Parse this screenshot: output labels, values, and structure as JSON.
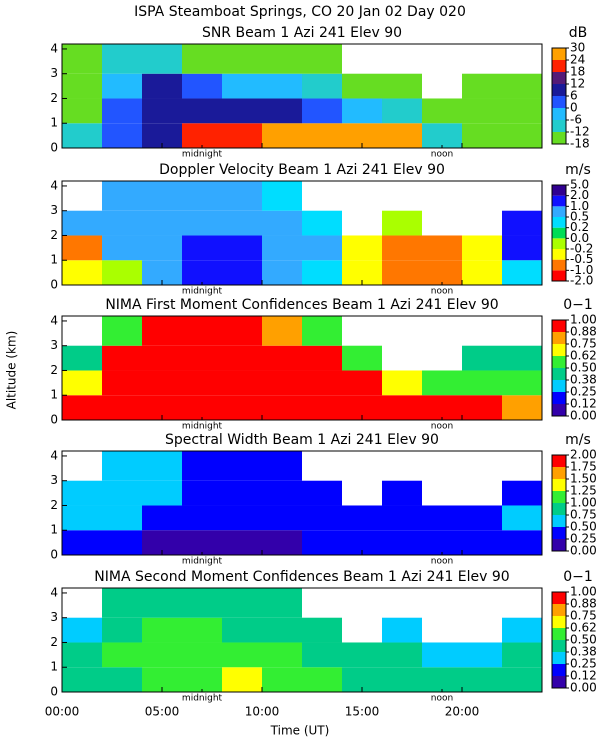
{
  "title": "ISPA Steamboat Springs, CO  20 Jan 02 Day 020",
  "xlabel": "Time (UT)",
  "ylabel": "Altitude (km)",
  "xlim": [
    0,
    24
  ],
  "xticks": [
    {
      "value": 0,
      "label": "00:00"
    },
    {
      "value": 5,
      "label": "05:00"
    },
    {
      "value": 10,
      "label": "10:00"
    },
    {
      "value": 15,
      "label": "15:00"
    },
    {
      "value": 20,
      "label": "20:00"
    }
  ],
  "annotations": [
    {
      "text": "midnight",
      "x": 7
    },
    {
      "text": "noon",
      "x": 19
    }
  ],
  "chart_data": [
    {
      "type": "heatmap",
      "title": "SNR Beam 1 Azi 241 Elev 90",
      "unit": "dB",
      "x_bins": [
        0,
        2,
        4,
        6,
        8,
        10,
        12,
        14,
        16,
        18,
        20,
        22,
        24
      ],
      "y_bins": [
        0,
        1,
        2,
        3,
        4.2
      ],
      "ylim": [
        0,
        4.2
      ],
      "yticks": [
        0,
        1,
        2,
        3,
        4
      ],
      "cticks": [
        -18,
        -12,
        -6,
        0,
        6,
        12,
        18,
        24,
        30
      ],
      "colors": [
        "#66dd22",
        "#22cccc",
        "#22bbff",
        "#2255ff",
        "#1a1a99",
        "#551a77",
        "#ff2200",
        "#ffa000"
      ],
      "z": [
        [
          -12,
          0,
          6,
          18,
          18,
          24,
          24,
          24,
          24,
          -12,
          -15,
          -15
        ],
        [
          -15,
          0,
          6,
          6,
          6,
          6,
          0,
          -6,
          -12,
          -15,
          -18,
          -18
        ],
        [
          -15,
          -6,
          6,
          0,
          -6,
          -6,
          -12,
          -15,
          -18,
          null,
          -18,
          -18
        ],
        [
          -15,
          -12,
          -12,
          -15,
          -15,
          -15,
          -18,
          null,
          null,
          null,
          null,
          null
        ]
      ]
    },
    {
      "type": "heatmap",
      "title": "Doppler Velocity Beam 1 Azi 241 Elev 90",
      "unit": "m/s",
      "x_bins": [
        0,
        2,
        4,
        6,
        8,
        10,
        12,
        14,
        16,
        18,
        20,
        22,
        24
      ],
      "y_bins": [
        0,
        1,
        2,
        3,
        4.2
      ],
      "ylim": [
        0,
        4.2
      ],
      "yticks": [
        0,
        1,
        2,
        3,
        4
      ],
      "cticks": [
        {
          "value": -2,
          "label": "-2.0"
        },
        {
          "value": -1,
          "label": "-1.0"
        },
        -0.5,
        -0.2,
        {
          "value": 0,
          "label": "0.0"
        },
        0.2,
        0.5,
        {
          "value": 1,
          "label": "1.0"
        },
        {
          "value": 2,
          "label": "2.0"
        },
        {
          "value": 5,
          "label": "5.0"
        }
      ],
      "colors": [
        "#ff0000",
        "#ff7700",
        "#ffff00",
        "#aaff00",
        "#00dd55",
        "#00ddff",
        "#33aaff",
        "#1010ff",
        "#300090"
      ],
      "z": [
        [
          -0.5,
          -0.2,
          0.5,
          1.0,
          1.0,
          0.5,
          0.2,
          -0.5,
          -1.0,
          -1.0,
          -0.5,
          0.2
        ],
        [
          -1.0,
          0.5,
          0.5,
          1.0,
          1.0,
          0.5,
          0.5,
          -0.5,
          -1.0,
          -1.0,
          -0.5,
          1.0
        ],
        [
          0.5,
          0.5,
          0.5,
          0.5,
          0.5,
          0.5,
          0.2,
          null,
          -0.2,
          null,
          null,
          1.0
        ],
        [
          null,
          0.5,
          0.5,
          0.5,
          0.5,
          0.2,
          null,
          null,
          null,
          null,
          null,
          null
        ]
      ]
    },
    {
      "type": "heatmap",
      "title": "NIMA First Moment Confidences Beam 1 Azi 241 Elev 90",
      "unit": "0−1",
      "x_bins": [
        0,
        2,
        4,
        6,
        8,
        10,
        12,
        14,
        16,
        18,
        20,
        22,
        24
      ],
      "y_bins": [
        0,
        1,
        2,
        3,
        4.2
      ],
      "ylim": [
        0,
        4.2
      ],
      "yticks": [
        0,
        1,
        2,
        3,
        4
      ],
      "cticks": [
        {
          "value": 0,
          "label": "0.00"
        },
        {
          "value": 0.125,
          "label": "0.12"
        },
        {
          "value": 0.25,
          "label": "0.25"
        },
        {
          "value": 0.375,
          "label": "0.38"
        },
        {
          "value": 0.5,
          "label": "0.50"
        },
        {
          "value": 0.625,
          "label": "0.62"
        },
        {
          "value": 0.75,
          "label": "0.75"
        },
        {
          "value": 0.875,
          "label": "0.88"
        },
        {
          "value": 1,
          "label": "1.00"
        }
      ],
      "colors": [
        "#3300aa",
        "#0000ff",
        "#00ccff",
        "#00cc88",
        "#33ee33",
        "#ffff00",
        "#ffa000",
        "#ff0000"
      ],
      "z": [
        [
          0.9,
          1,
          1,
          1,
          1,
          1,
          1,
          1,
          1,
          1,
          0.95,
          0.8
        ],
        [
          0.7,
          0.95,
          1,
          1,
          1,
          1,
          1,
          0.95,
          0.7,
          0.6,
          0.6,
          0.5
        ],
        [
          0.4,
          1,
          1,
          1,
          1,
          1,
          1,
          0.6,
          null,
          null,
          0.4,
          0.4
        ],
        [
          null,
          0.6,
          0.9,
          0.95,
          0.9,
          0.8,
          0.5,
          null,
          null,
          null,
          null,
          null
        ]
      ]
    },
    {
      "type": "heatmap",
      "title": "Spectral Width Beam 1 Azi 241 Elev 90",
      "unit": "m/s",
      "x_bins": [
        0,
        2,
        4,
        6,
        8,
        10,
        12,
        14,
        16,
        18,
        20,
        22,
        24
      ],
      "y_bins": [
        0,
        1,
        2,
        3,
        4.2
      ],
      "ylim": [
        0,
        4.2
      ],
      "yticks": [
        0,
        1,
        2,
        3,
        4
      ],
      "cticks": [
        {
          "value": 0,
          "label": "0.00"
        },
        0.25,
        {
          "value": 0.5,
          "label": "0.50"
        },
        0.75,
        {
          "value": 1,
          "label": "1.00"
        },
        1.25,
        {
          "value": 1.5,
          "label": "1.50"
        },
        1.75,
        {
          "value": 2,
          "label": "2.00"
        }
      ],
      "colors": [
        "#3300aa",
        "#0000ff",
        "#00ccff",
        "#00cc88",
        "#33ee33",
        "#ffff00",
        "#ffa000",
        "#ff0000"
      ],
      "z": [
        [
          0.3,
          0.3,
          0.2,
          0.1,
          0.2,
          0.2,
          0.3,
          0.4,
          0.3,
          0.3,
          0.3,
          0.4
        ],
        [
          0.5,
          0.6,
          0.4,
          0.3,
          0.3,
          0.3,
          0.4,
          0.4,
          0.3,
          0.4,
          0.4,
          0.5
        ],
        [
          0.5,
          0.6,
          0.5,
          0.4,
          0.4,
          0.4,
          0.4,
          null,
          0.3,
          null,
          null,
          0.4
        ],
        [
          null,
          0.5,
          0.5,
          0.4,
          0.4,
          0.4,
          null,
          null,
          null,
          null,
          null,
          null
        ]
      ]
    },
    {
      "type": "heatmap",
      "title": "NIMA Second Moment Confidences Beam 1 Azi 241 Elev 90",
      "unit": "0−1",
      "x_bins": [
        0,
        2,
        4,
        6,
        8,
        10,
        12,
        14,
        16,
        18,
        20,
        22,
        24
      ],
      "y_bins": [
        0,
        1,
        2,
        3,
        4.2
      ],
      "ylim": [
        0,
        4.2
      ],
      "yticks": [
        0,
        1,
        2,
        3,
        4
      ],
      "cticks": [
        {
          "value": 0,
          "label": "0.00"
        },
        {
          "value": 0.125,
          "label": "0.12"
        },
        {
          "value": 0.25,
          "label": "0.25"
        },
        {
          "value": 0.375,
          "label": "0.38"
        },
        {
          "value": 0.5,
          "label": "0.50"
        },
        {
          "value": 0.625,
          "label": "0.62"
        },
        {
          "value": 0.75,
          "label": "0.75"
        },
        {
          "value": 0.875,
          "label": "0.88"
        },
        {
          "value": 1,
          "label": "1.00"
        }
      ],
      "colors": [
        "#3300aa",
        "#0000ff",
        "#00ccff",
        "#00cc88",
        "#33ee33",
        "#ffff00",
        "#ffa000",
        "#ff0000"
      ],
      "z": [
        [
          0.4,
          0.45,
          0.5,
          0.6,
          0.65,
          0.6,
          0.5,
          0.45,
          0.4,
          0.4,
          0.4,
          0.4
        ],
        [
          0.4,
          0.5,
          0.55,
          0.6,
          0.6,
          0.5,
          0.45,
          0.4,
          0.4,
          0.35,
          0.35,
          0.4
        ],
        [
          0.3,
          0.45,
          0.5,
          0.5,
          0.45,
          0.45,
          0.4,
          null,
          0.35,
          null,
          null,
          0.35
        ],
        [
          null,
          0.4,
          0.45,
          0.45,
          0.4,
          0.4,
          null,
          null,
          null,
          null,
          null,
          null
        ]
      ]
    }
  ]
}
